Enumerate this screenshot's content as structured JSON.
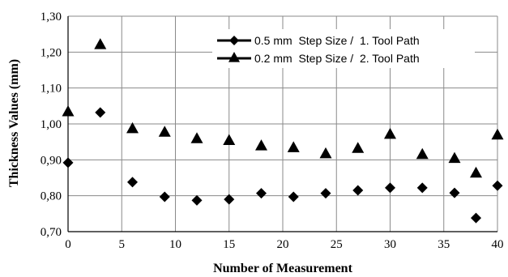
{
  "chart_data": {
    "type": "scatter",
    "title": "",
    "xlabel": "Number of Measurement",
    "ylabel": "Thickness Values (mm)",
    "xlim": [
      0,
      40
    ],
    "ylim": [
      0.7,
      1.3
    ],
    "xticks": [
      0,
      5,
      10,
      15,
      20,
      25,
      30,
      35,
      40
    ],
    "yticks": [
      0.7,
      0.8,
      0.9,
      1.0,
      1.1,
      1.2,
      1.3
    ],
    "xtick_labels": [
      "0",
      "5",
      "10",
      "15",
      "20",
      "25",
      "30",
      "35",
      "40"
    ],
    "ytick_labels": [
      "0,70",
      "0,80",
      "0,90",
      "1,00",
      "1,10",
      "1,20",
      "1,30"
    ],
    "grid": true,
    "legend_position": "top-right",
    "series": [
      {
        "name": "0.5 mm  Step Size /  1. Tool Path",
        "marker": "diamond",
        "color": "#000000",
        "points": [
          [
            0,
            0.892
          ],
          [
            3,
            1.032
          ],
          [
            6,
            0.838
          ],
          [
            9,
            0.797
          ],
          [
            12,
            0.787
          ],
          [
            15,
            0.79
          ],
          [
            18,
            0.807
          ],
          [
            21,
            0.797
          ],
          [
            24,
            0.807
          ],
          [
            27,
            0.815
          ],
          [
            30,
            0.822
          ],
          [
            33,
            0.822
          ],
          [
            36,
            0.808
          ],
          [
            38,
            0.738
          ],
          [
            40,
            0.828
          ]
        ]
      },
      {
        "name": "0.2 mm  Step Size /  2. Tool Path",
        "marker": "triangle",
        "color": "#000000",
        "points": [
          [
            0,
            1.035
          ],
          [
            3,
            1.222
          ],
          [
            6,
            0.988
          ],
          [
            9,
            0.978
          ],
          [
            12,
            0.96
          ],
          [
            15,
            0.955
          ],
          [
            18,
            0.94
          ],
          [
            21,
            0.935
          ],
          [
            24,
            0.918
          ],
          [
            27,
            0.933
          ],
          [
            30,
            0.972
          ],
          [
            33,
            0.916
          ],
          [
            36,
            0.905
          ],
          [
            38,
            0.864
          ],
          [
            40,
            0.97
          ]
        ]
      }
    ]
  }
}
